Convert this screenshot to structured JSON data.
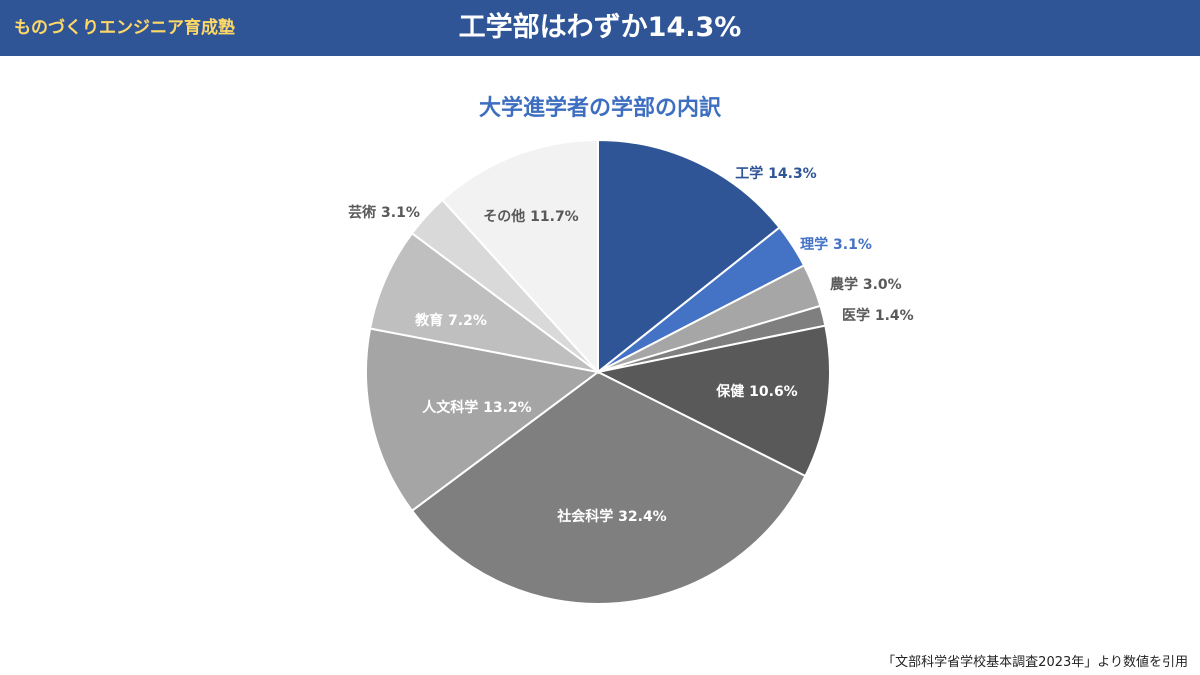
{
  "header": {
    "brand": "ものづくりエンジニア育成塾",
    "headline": "工学部はわずか14.3%"
  },
  "colors": {
    "header_bg": "#2f5597",
    "brand_text": "#ffd966",
    "title_text": "#3d6ebf"
  },
  "chart_data": {
    "type": "pie",
    "title": "大学進学者の学部の内訳",
    "unit": "%",
    "slices": [
      {
        "label": "工学",
        "display": "工学 14.3%",
        "value": 14.3,
        "color": "#2f5597"
      },
      {
        "label": "理学",
        "display": "理学 3.1%",
        "value": 3.1,
        "color": "#4472c4"
      },
      {
        "label": "農学",
        "display": "農学 3.0%",
        "value": 3.0,
        "color": "#a6a6a6"
      },
      {
        "label": "医学",
        "display": "医学 1.4%",
        "value": 1.4,
        "color": "#7f7f7f"
      },
      {
        "label": "保健",
        "display": "保健 10.6%",
        "value": 10.6,
        "color": "#595959"
      },
      {
        "label": "社会科学",
        "display": "社会科学 32.4%",
        "value": 32.4,
        "color": "#7f7f7f"
      },
      {
        "label": "人文科学",
        "display": "人文科学 13.2%",
        "value": 13.2,
        "color": "#a5a5a5"
      },
      {
        "label": "教育",
        "display": "教育 7.2%",
        "value": 7.2,
        "color": "#bfbfbf"
      },
      {
        "label": "芸術",
        "display": "芸術 3.1%",
        "value": 3.1,
        "color": "#d9d9d9"
      },
      {
        "label": "その他",
        "display": "その他 11.7%",
        "value": 11.7,
        "color": "#f2f2f2"
      }
    ]
  },
  "source": "「文部科学省学校基本調査2023年」より数値を引用"
}
